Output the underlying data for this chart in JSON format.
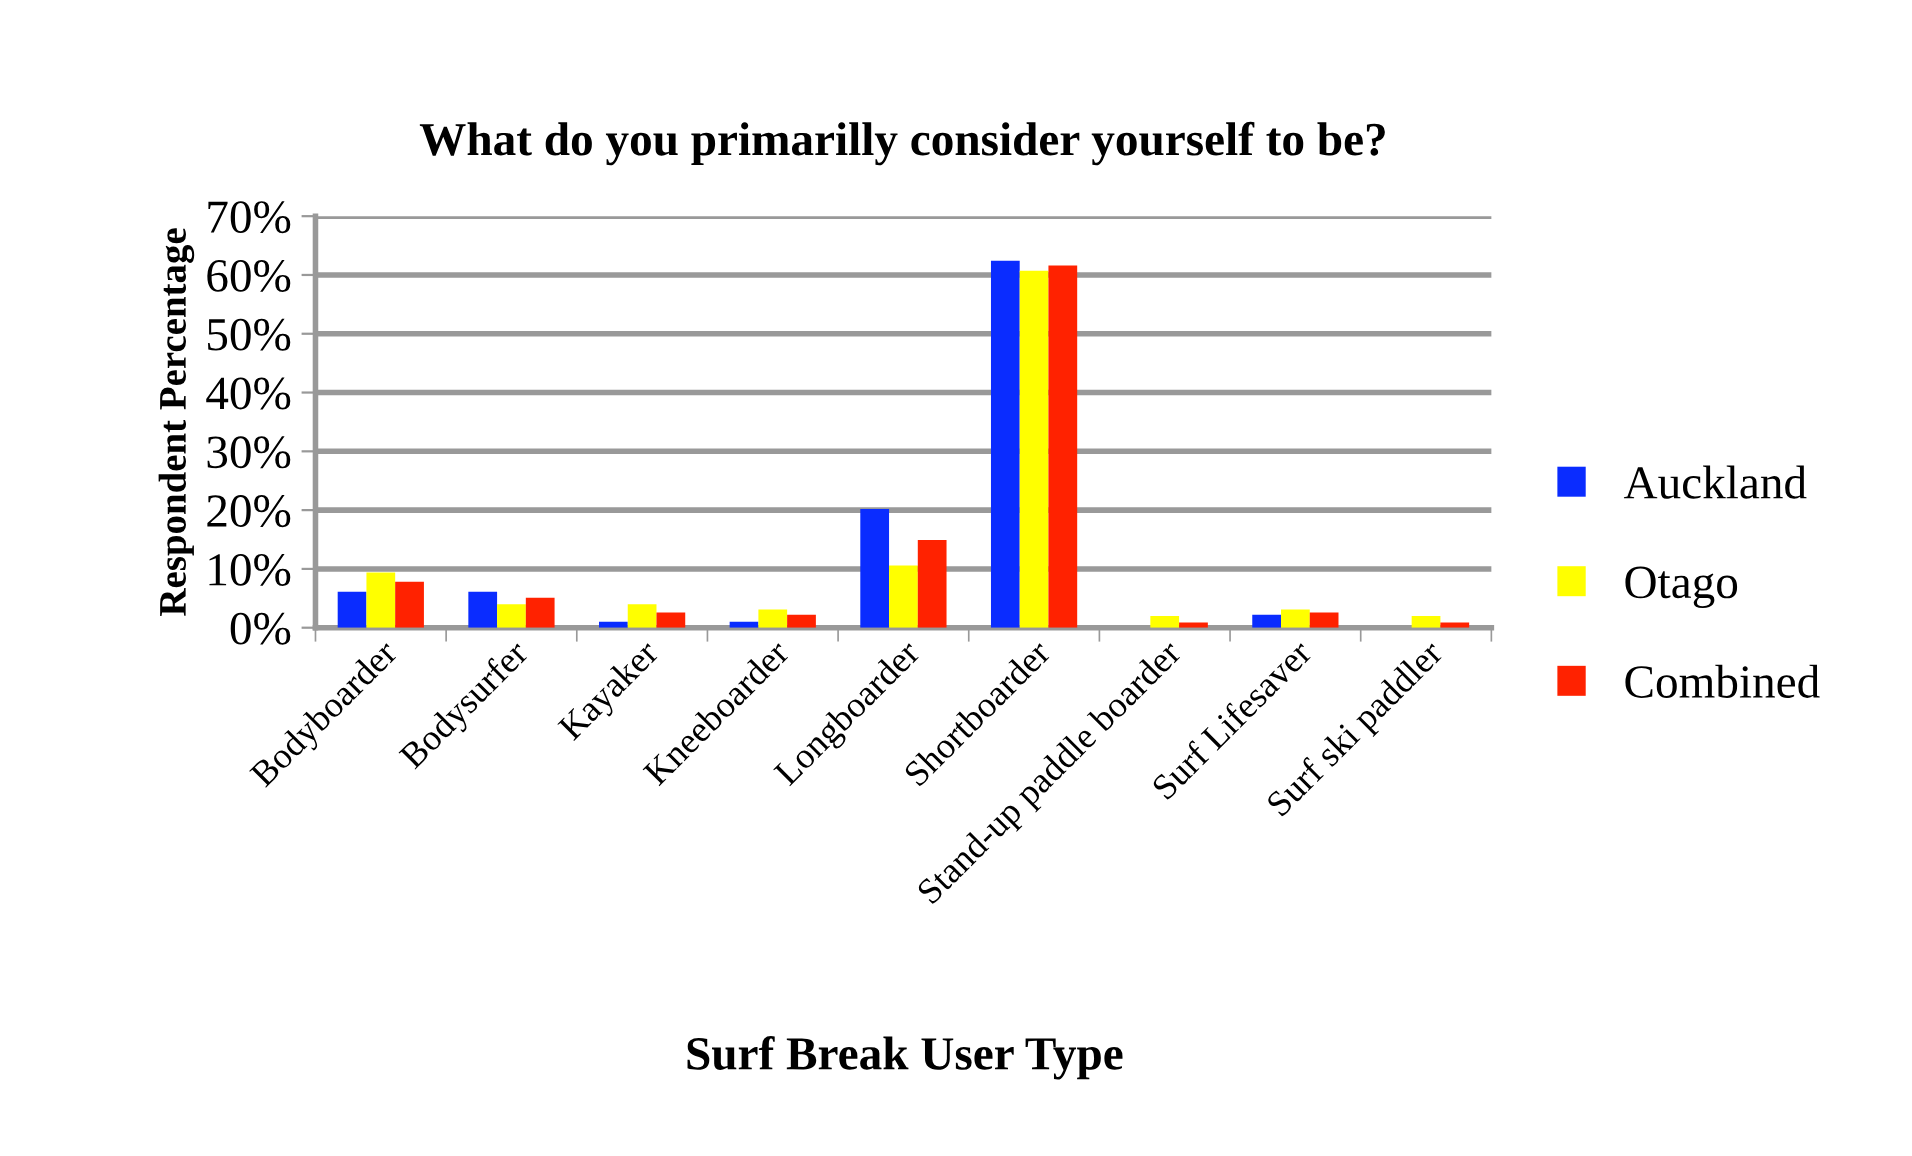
{
  "chart_data": {
    "type": "bar",
    "title": "What do you primarilly consider yourself to be?",
    "xlabel": "Surf Break User Type",
    "ylabel": "Respondent Percentage",
    "categories": [
      "Bodyboarder",
      "Bodysurfer",
      "Kayaker",
      "Kneeboarder",
      "Longboarder",
      "Shortboarder",
      "Stand-up paddle boarder",
      "Surf Lifesaver",
      "Surf ski paddler"
    ],
    "series": [
      {
        "name": "Auckland",
        "color": "#0a2cff",
        "values": [
          6.1,
          6.1,
          1.0,
          1.0,
          20.2,
          62.4,
          0,
          2.2,
          0
        ]
      },
      {
        "name": "Otago",
        "color": "#ffff00",
        "values": [
          9.4,
          4.0,
          4.0,
          3.1,
          10.6,
          60.7,
          2.0,
          3.1,
          2.0
        ]
      },
      {
        "name": "Combined",
        "color": "#ff2200",
        "values": [
          7.8,
          5.1,
          2.6,
          2.2,
          14.9,
          61.6,
          0.9,
          2.6,
          0.9
        ]
      }
    ],
    "ylim": [
      0,
      70
    ],
    "yticks": [
      {
        "value": 0,
        "label": "0%"
      },
      {
        "value": 10,
        "label": "10%"
      },
      {
        "value": 20,
        "label": "20%"
      },
      {
        "value": 30,
        "label": "30%"
      },
      {
        "value": 40,
        "label": "40%"
      },
      {
        "value": 50,
        "label": "50%"
      },
      {
        "value": 60,
        "label": "60%"
      },
      {
        "value": 70,
        "label": "70%"
      }
    ],
    "grid": "y",
    "legend": "right"
  }
}
